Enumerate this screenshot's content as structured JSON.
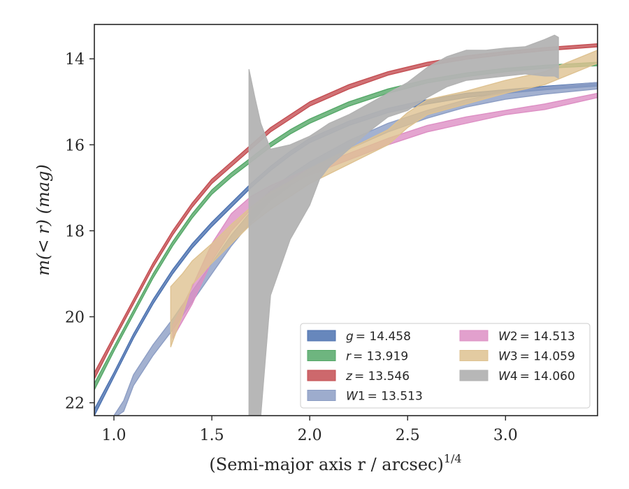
{
  "chart_data": {
    "type": "area",
    "xlabel_main": "(Semi-major axis r / arcsec)",
    "xlabel_sup": "1/4",
    "ylabel": "m(< r) (mag)",
    "xlim": [
      0.9,
      3.47
    ],
    "ylim": [
      22.3,
      13.2
    ],
    "y_inverted": true,
    "grid": false,
    "legend_position": "lower-right",
    "x_ticks": [
      {
        "value": 1.0,
        "label": "1.0"
      },
      {
        "value": 1.5,
        "label": "1.5"
      },
      {
        "value": 2.0,
        "label": "2.0"
      },
      {
        "value": 2.5,
        "label": "2.5"
      },
      {
        "value": 3.0,
        "label": "3.0"
      }
    ],
    "y_ticks": [
      {
        "value": 14,
        "label": "14"
      },
      {
        "value": 16,
        "label": "16"
      },
      {
        "value": 18,
        "label": "18"
      },
      {
        "value": 20,
        "label": "20"
      },
      {
        "value": 22,
        "label": "22"
      }
    ],
    "series": [
      {
        "name": "g = 14.458",
        "legend_main": "g",
        "legend_value": "= 14.458",
        "color": "#4c72b0",
        "band": [
          [
            0.9,
            22.15,
            22.3
          ],
          [
            1.0,
            21.3,
            21.4
          ],
          [
            1.1,
            20.4,
            20.5
          ],
          [
            1.2,
            19.6,
            19.7
          ],
          [
            1.3,
            18.9,
            19.0
          ],
          [
            1.4,
            18.3,
            18.4
          ],
          [
            1.5,
            17.8,
            17.9
          ],
          [
            1.6,
            17.35,
            17.45
          ],
          [
            1.7,
            16.9,
            17.0
          ],
          [
            1.8,
            16.5,
            16.6
          ],
          [
            1.9,
            16.15,
            16.25
          ],
          [
            2.0,
            15.85,
            15.95
          ],
          [
            2.2,
            15.45,
            15.55
          ],
          [
            2.4,
            15.15,
            15.25
          ],
          [
            2.6,
            14.95,
            15.05
          ],
          [
            2.8,
            14.8,
            14.9
          ],
          [
            3.0,
            14.72,
            14.8
          ],
          [
            3.2,
            14.64,
            14.72
          ],
          [
            3.47,
            14.55,
            14.63
          ]
        ]
      },
      {
        "name": "r = 13.919",
        "legend_main": "r",
        "legend_value": "= 13.919",
        "color": "#55a868",
        "band": [
          [
            0.9,
            21.55,
            21.7
          ],
          [
            1.0,
            20.7,
            20.8
          ],
          [
            1.1,
            19.85,
            19.95
          ],
          [
            1.2,
            19.0,
            19.1
          ],
          [
            1.3,
            18.25,
            18.35
          ],
          [
            1.4,
            17.6,
            17.7
          ],
          [
            1.5,
            17.05,
            17.15
          ],
          [
            1.6,
            16.65,
            16.75
          ],
          [
            1.7,
            16.3,
            16.4
          ],
          [
            1.8,
            15.95,
            16.05
          ],
          [
            1.9,
            15.65,
            15.75
          ],
          [
            2.0,
            15.4,
            15.5
          ],
          [
            2.2,
            15.0,
            15.1
          ],
          [
            2.4,
            14.7,
            14.8
          ],
          [
            2.6,
            14.48,
            14.56
          ],
          [
            2.8,
            14.33,
            14.41
          ],
          [
            3.0,
            14.22,
            14.3
          ],
          [
            3.2,
            14.15,
            14.22
          ],
          [
            3.47,
            14.08,
            14.16
          ]
        ]
      },
      {
        "name": "z = 13.546",
        "legend_main": "z",
        "legend_value": "= 13.546",
        "color": "#c44e52",
        "band": [
          [
            0.9,
            21.3,
            21.45
          ],
          [
            1.0,
            20.45,
            20.55
          ],
          [
            1.1,
            19.6,
            19.7
          ],
          [
            1.2,
            18.75,
            18.85
          ],
          [
            1.3,
            18.0,
            18.1
          ],
          [
            1.4,
            17.35,
            17.45
          ],
          [
            1.5,
            16.8,
            16.9
          ],
          [
            1.6,
            16.4,
            16.5
          ],
          [
            1.7,
            16.0,
            16.1
          ],
          [
            1.8,
            15.6,
            15.7
          ],
          [
            1.9,
            15.3,
            15.4
          ],
          [
            2.0,
            15.0,
            15.1
          ],
          [
            2.2,
            14.6,
            14.7
          ],
          [
            2.4,
            14.3,
            14.38
          ],
          [
            2.6,
            14.08,
            14.16
          ],
          [
            2.8,
            13.93,
            14.01
          ],
          [
            3.0,
            13.83,
            13.9
          ],
          [
            3.2,
            13.74,
            13.81
          ],
          [
            3.47,
            13.65,
            13.72
          ]
        ]
      },
      {
        "name": "W1 = 13.513",
        "legend_main": "W",
        "legend_sub": "1",
        "legend_value": "= 13.513",
        "color": "#8c9dc4",
        "band": [
          [
            1.0,
            22.3,
            22.35
          ],
          [
            1.05,
            21.95,
            22.2
          ],
          [
            1.1,
            21.35,
            21.6
          ],
          [
            1.2,
            20.65,
            20.9
          ],
          [
            1.3,
            20.05,
            20.3
          ],
          [
            1.4,
            19.4,
            19.65
          ],
          [
            1.5,
            18.75,
            19.0
          ],
          [
            1.6,
            18.1,
            18.35
          ],
          [
            1.7,
            17.55,
            17.8
          ],
          [
            1.8,
            17.05,
            17.3
          ],
          [
            1.9,
            16.7,
            16.95
          ],
          [
            2.0,
            16.4,
            16.65
          ],
          [
            2.2,
            15.9,
            16.1
          ],
          [
            2.4,
            15.5,
            15.7
          ],
          [
            2.6,
            15.2,
            15.38
          ],
          [
            2.8,
            14.95,
            15.12
          ],
          [
            3.0,
            14.78,
            14.94
          ],
          [
            3.2,
            14.66,
            14.82
          ],
          [
            3.47,
            14.55,
            14.7
          ]
        ]
      },
      {
        "name": "W2 = 14.513",
        "legend_main": "W",
        "legend_sub": "2",
        "legend_value": "= 14.513",
        "color": "#dd8fc4",
        "band": [
          [
            1.3,
            20.2,
            20.5
          ],
          [
            1.4,
            19.3,
            19.7
          ],
          [
            1.5,
            18.3,
            18.7
          ],
          [
            1.6,
            17.6,
            18.0
          ],
          [
            1.7,
            17.2,
            17.5
          ],
          [
            1.8,
            16.95,
            17.15
          ],
          [
            1.9,
            16.75,
            16.9
          ],
          [
            2.0,
            16.55,
            16.7
          ],
          [
            2.2,
            16.2,
            16.35
          ],
          [
            2.4,
            15.85,
            16.0
          ],
          [
            2.6,
            15.55,
            15.7
          ],
          [
            2.8,
            15.35,
            15.5
          ],
          [
            3.0,
            15.2,
            15.3
          ],
          [
            3.2,
            15.05,
            15.18
          ],
          [
            3.47,
            14.8,
            14.9
          ]
        ]
      },
      {
        "name": "W3 = 14.059",
        "legend_main": "W",
        "legend_sub": "3",
        "legend_value": "= 14.059",
        "color": "#dec291",
        "band": [
          [
            1.29,
            19.3,
            20.7
          ],
          [
            1.35,
            19.0,
            19.95
          ],
          [
            1.4,
            18.7,
            19.25
          ],
          [
            1.5,
            18.3,
            18.75
          ],
          [
            1.6,
            17.85,
            18.3
          ],
          [
            1.7,
            17.45,
            17.85
          ],
          [
            1.8,
            17.1,
            17.5
          ],
          [
            1.9,
            16.85,
            17.2
          ],
          [
            2.0,
            16.55,
            16.9
          ],
          [
            2.2,
            16.1,
            16.45
          ],
          [
            2.4,
            15.65,
            16.0
          ],
          [
            2.5,
            15.25,
            15.6
          ],
          [
            2.6,
            14.95,
            15.3
          ],
          [
            2.8,
            14.75,
            15.05
          ],
          [
            3.0,
            14.5,
            14.8
          ],
          [
            3.2,
            14.3,
            14.6
          ],
          [
            3.47,
            13.8,
            14.1
          ]
        ]
      },
      {
        "name": "W4 = 14.060",
        "legend_main": "W",
        "legend_sub": "4",
        "legend_value": "= 14.060",
        "color": "#b3b3b3",
        "band": [
          [
            1.69,
            14.25,
            22.3
          ],
          [
            1.72,
            14.9,
            22.3
          ],
          [
            1.75,
            15.5,
            22.3
          ],
          [
            1.8,
            16.1,
            19.5
          ],
          [
            1.9,
            16.0,
            18.2
          ],
          [
            2.0,
            15.8,
            17.4
          ],
          [
            2.05,
            15.65,
            16.8
          ],
          [
            2.1,
            15.5,
            16.5
          ],
          [
            2.2,
            15.3,
            16.1
          ],
          [
            2.3,
            15.05,
            15.7
          ],
          [
            2.4,
            14.8,
            15.35
          ],
          [
            2.5,
            14.55,
            15.2
          ],
          [
            2.6,
            14.2,
            14.9
          ],
          [
            2.7,
            13.95,
            14.65
          ],
          [
            2.8,
            13.8,
            14.5
          ],
          [
            2.9,
            13.8,
            14.45
          ],
          [
            3.0,
            13.75,
            14.4
          ],
          [
            3.1,
            13.72,
            14.35
          ],
          [
            3.2,
            13.55,
            14.4
          ],
          [
            3.25,
            13.45,
            14.4
          ],
          [
            3.27,
            13.5,
            14.45
          ]
        ]
      }
    ]
  }
}
